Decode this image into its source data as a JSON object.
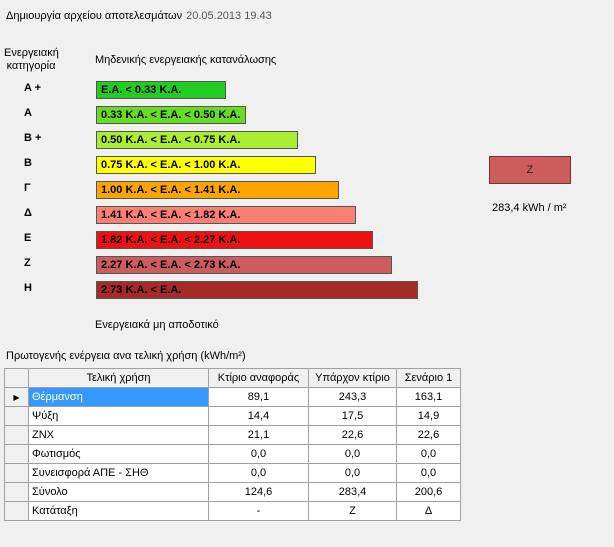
{
  "header": {
    "title": "Δημιουργία αρχείου αποτελεσμάτων",
    "timestamp": "20.05.2013 19.43"
  },
  "energy_chart": {
    "category_heading": [
      "Ενεργειακή",
      "κατηγορία"
    ],
    "top_label": "Μηδενικής ενεργειακής κατανάλωσης",
    "bottom_label": "Ενεργειακά μη αποδοτικό",
    "categories": [
      {
        "letter": "A +",
        "range": "E.A. < 0.33 K.A.",
        "color": "#22cc22"
      },
      {
        "letter": "A",
        "range": "0.33 K.A. <  E.A. < 0.50 K.A.",
        "color": "#66dd22"
      },
      {
        "letter": "B +",
        "range": "0.50 K.A. <  E.A. < 0.75 K.A.",
        "color": "#aaee33"
      },
      {
        "letter": "B",
        "range": "0.75 K.A. <  E.A. < 1.00 K.A.",
        "color": "#ffff00"
      },
      {
        "letter": "Γ",
        "range": "1.00 K.A. <  E.A. < 1.41 K.A.",
        "color": "#ffa500"
      },
      {
        "letter": "Δ",
        "range": "1.41 K.A. <  E.A. < 1.82 K.A.",
        "color": "#fa8072"
      },
      {
        "letter": "E",
        "range": "1.82 K.A. <  E.A. < 2.27 K.A.",
        "color": "#ee1111"
      },
      {
        "letter": "Z",
        "range": "2.27 K.A. <  E.A. < 2.73 K.A.",
        "color": "#cd5c5c"
      },
      {
        "letter": "H",
        "range": "2.73 K.A. <  E.A.",
        "color": "#a52a2a"
      }
    ],
    "result_class": "Z",
    "result_value": "283,4 kWh / m²"
  },
  "table": {
    "title": "Πρωτογενής ενέργεια ανα τελική χρήση (kWh/m²)",
    "columns": [
      "Τελική χρήση",
      "Κτίριο αναφοράς",
      "Υπάρχον κτίριο",
      "Σενάριο 1"
    ],
    "rows": [
      [
        "Θέρμανση",
        "89,1",
        "243,3",
        "163,1"
      ],
      [
        "Ψύξη",
        "14,4",
        "17,5",
        "14,9"
      ],
      [
        "ZNX",
        "21,1",
        "22,6",
        "22,6"
      ],
      [
        "Φωτισμός",
        "0,0",
        "0,0",
        "0,0"
      ],
      [
        "Συνεισφορά ΑΠΕ - ΣΗΘ",
        "0,0",
        "0,0",
        "0,0"
      ],
      [
        "Σύνολο",
        "124,6",
        "283,4",
        "200,6"
      ],
      [
        "Κατάταξη",
        "-",
        "Z",
        "Δ"
      ]
    ]
  }
}
